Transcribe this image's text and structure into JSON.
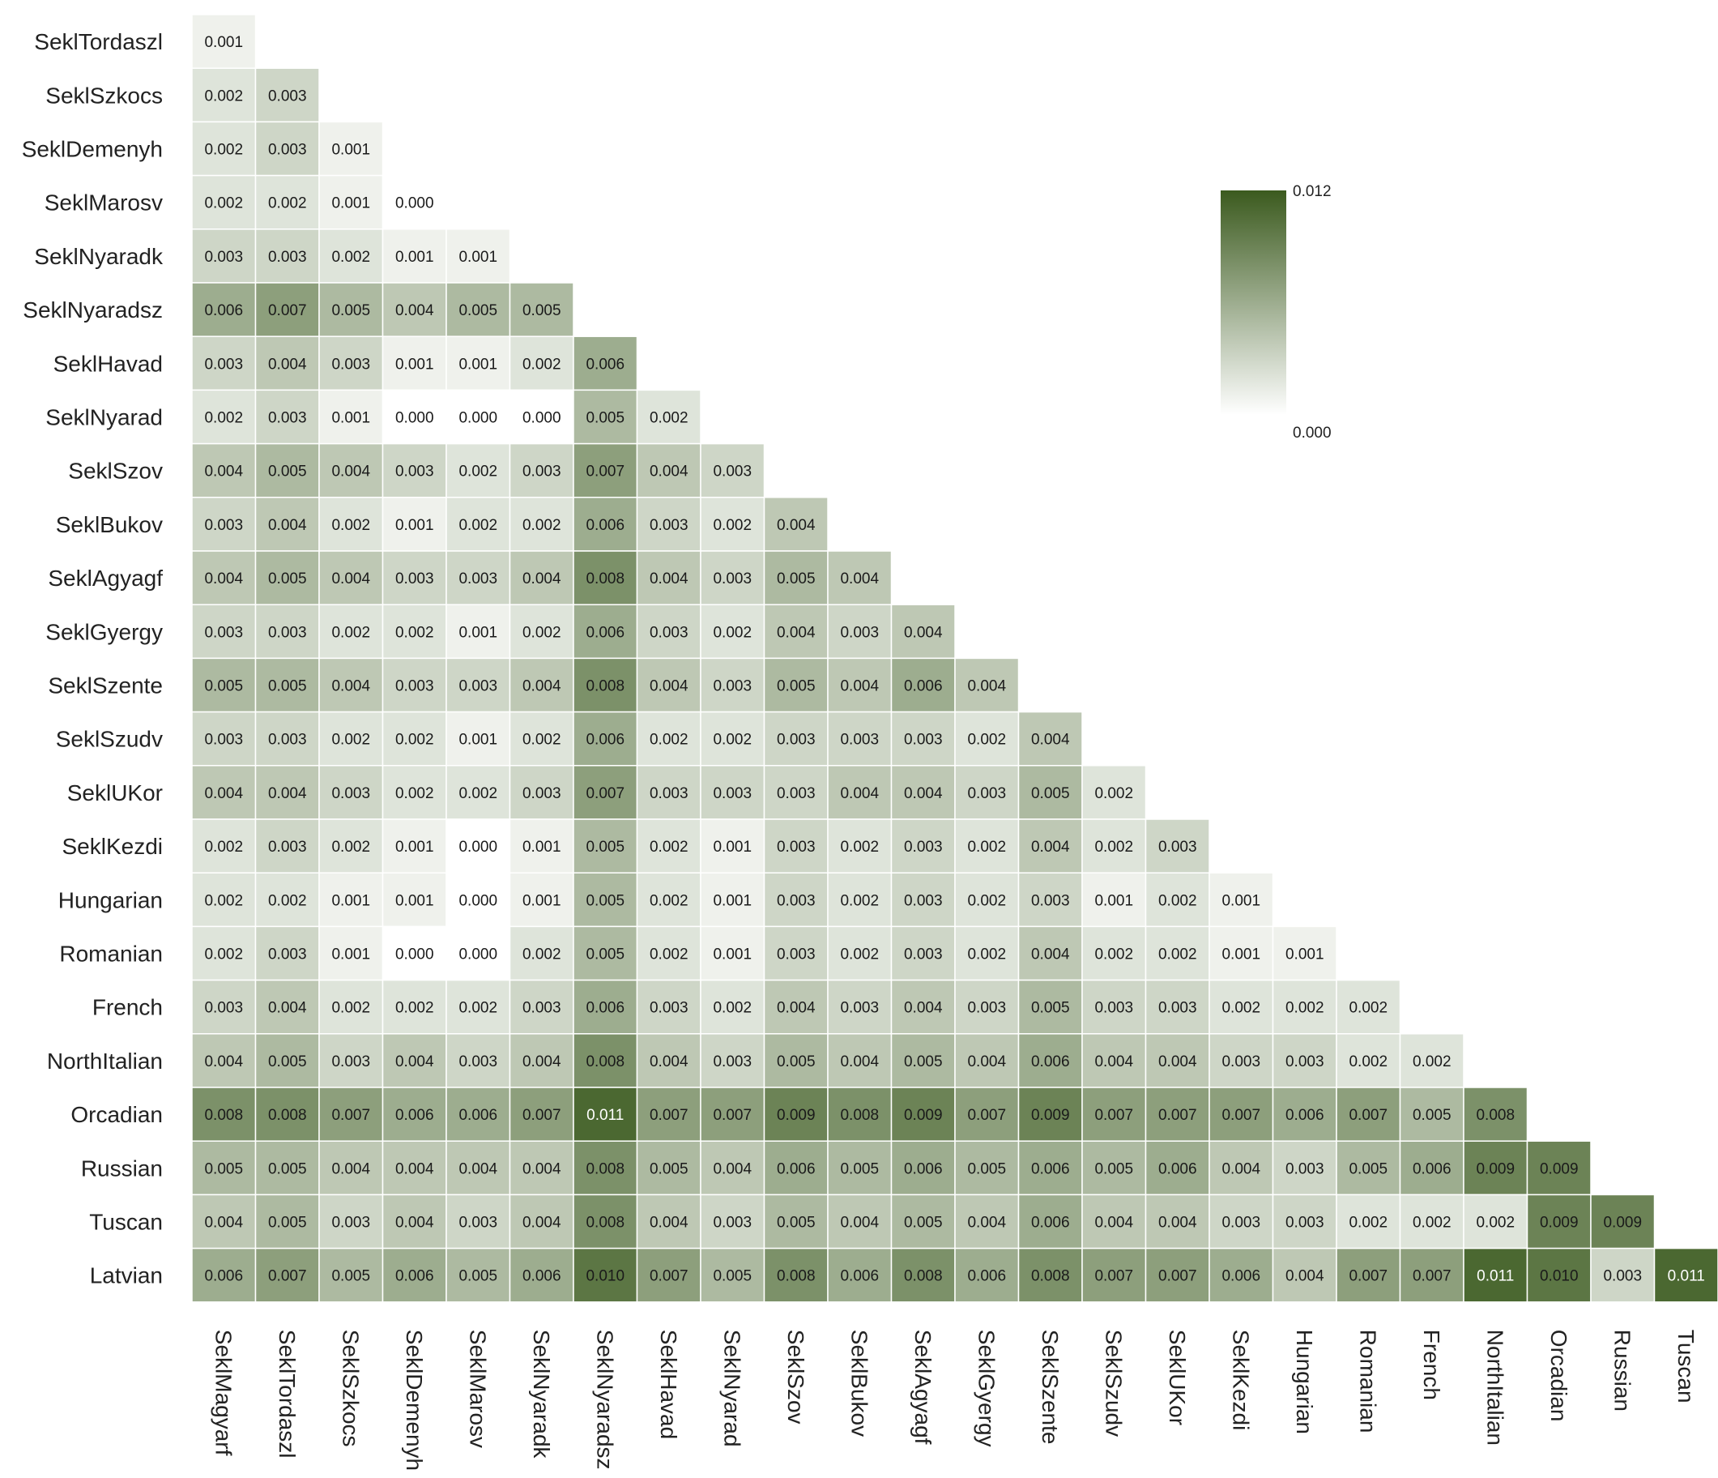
{
  "chart_data": {
    "type": "heatmap",
    "title": "",
    "xlabel": "",
    "ylabel": "",
    "rows": [
      "SeklTordaszl",
      "SeklSzkocs",
      "SeklDemenyh",
      "SeklMarosv",
      "SeklNyaradk",
      "SeklNyaradsz",
      "SeklHavad",
      "SeklNyarad",
      "SeklSzov",
      "SeklBukov",
      "SeklAgyagf",
      "SeklGyergy",
      "SeklSzente",
      "SeklSzudv",
      "SeklUKor",
      "SeklKezdi",
      "Hungarian",
      "Romanian",
      "French",
      "NorthItalian",
      "Orcadian",
      "Russian",
      "Tuscan",
      "Latvian"
    ],
    "columns": [
      "SeklMagyarf",
      "SeklTordaszl",
      "SeklSzkocs",
      "SeklDemenyh",
      "SeklMarosv",
      "SeklNyaradk",
      "SeklNyaradsz",
      "SeklHavad",
      "SeklNyarad",
      "SeklSzov",
      "SeklBukov",
      "SeklAgyagf",
      "SeklGyergy",
      "SeklSzente",
      "SeklSzudv",
      "SeklUKor",
      "SeklKezdi",
      "Hungarian",
      "Romanian",
      "French",
      "NorthItalian",
      "Orcadian",
      "Russian",
      "Tuscan"
    ],
    "values": [
      [
        0.001
      ],
      [
        0.002,
        0.003
      ],
      [
        0.002,
        0.003,
        0.001
      ],
      [
        0.002,
        0.002,
        0.001,
        0.0
      ],
      [
        0.003,
        0.003,
        0.002,
        0.001,
        0.001
      ],
      [
        0.006,
        0.007,
        0.005,
        0.004,
        0.005,
        0.005
      ],
      [
        0.003,
        0.004,
        0.003,
        0.001,
        0.001,
        0.002,
        0.006
      ],
      [
        0.002,
        0.003,
        0.001,
        0.0,
        0.0,
        0.0,
        0.005,
        0.002
      ],
      [
        0.004,
        0.005,
        0.004,
        0.003,
        0.002,
        0.003,
        0.007,
        0.004,
        0.003
      ],
      [
        0.003,
        0.004,
        0.002,
        0.001,
        0.002,
        0.002,
        0.006,
        0.003,
        0.002,
        0.004
      ],
      [
        0.004,
        0.005,
        0.004,
        0.003,
        0.003,
        0.004,
        0.008,
        0.004,
        0.003,
        0.005,
        0.004
      ],
      [
        0.003,
        0.003,
        0.002,
        0.002,
        0.001,
        0.002,
        0.006,
        0.003,
        0.002,
        0.004,
        0.003,
        0.004
      ],
      [
        0.005,
        0.005,
        0.004,
        0.003,
        0.003,
        0.004,
        0.008,
        0.004,
        0.003,
        0.005,
        0.004,
        0.006,
        0.004
      ],
      [
        0.003,
        0.003,
        0.002,
        0.002,
        0.001,
        0.002,
        0.006,
        0.002,
        0.002,
        0.003,
        0.003,
        0.003,
        0.002,
        0.004
      ],
      [
        0.004,
        0.004,
        0.003,
        0.002,
        0.002,
        0.003,
        0.007,
        0.003,
        0.003,
        0.003,
        0.004,
        0.004,
        0.003,
        0.005,
        0.002
      ],
      [
        0.002,
        0.003,
        0.002,
        0.001,
        0.0,
        0.001,
        0.005,
        0.002,
        0.001,
        0.003,
        0.002,
        0.003,
        0.002,
        0.004,
        0.002,
        0.003
      ],
      [
        0.002,
        0.002,
        0.001,
        0.001,
        0.0,
        0.001,
        0.005,
        0.002,
        0.001,
        0.003,
        0.002,
        0.003,
        0.002,
        0.003,
        0.001,
        0.002,
        0.001
      ],
      [
        0.002,
        0.003,
        0.001,
        0.0,
        0.0,
        0.002,
        0.005,
        0.002,
        0.001,
        0.003,
        0.002,
        0.003,
        0.002,
        0.004,
        0.002,
        0.002,
        0.001,
        0.001
      ],
      [
        0.003,
        0.004,
        0.002,
        0.002,
        0.002,
        0.003,
        0.006,
        0.003,
        0.002,
        0.004,
        0.003,
        0.004,
        0.003,
        0.005,
        0.003,
        0.003,
        0.002,
        0.002,
        0.002
      ],
      [
        0.004,
        0.005,
        0.003,
        0.004,
        0.003,
        0.004,
        0.008,
        0.004,
        0.003,
        0.005,
        0.004,
        0.005,
        0.004,
        0.006,
        0.004,
        0.004,
        0.003,
        0.003,
        0.002,
        0.002
      ],
      [
        0.008,
        0.008,
        0.007,
        0.006,
        0.006,
        0.007,
        0.011,
        0.007,
        0.007,
        0.009,
        0.008,
        0.009,
        0.007,
        0.009,
        0.007,
        0.007,
        0.007,
        0.006,
        0.007,
        0.005,
        0.008
      ],
      [
        0.005,
        0.005,
        0.004,
        0.004,
        0.004,
        0.004,
        0.008,
        0.005,
        0.004,
        0.006,
        0.005,
        0.006,
        0.005,
        0.006,
        0.005,
        0.006,
        0.004,
        0.003,
        0.005,
        0.006,
        0.009,
        0.009
      ],
      [
        0.004,
        0.005,
        0.003,
        0.004,
        0.003,
        0.004,
        0.008,
        0.004,
        0.003,
        0.005,
        0.004,
        0.005,
        0.004,
        0.006,
        0.004,
        0.004,
        0.003,
        0.003,
        0.002,
        0.002,
        0.002,
        0.009,
        0.009
      ],
      [
        0.006,
        0.007,
        0.005,
        0.006,
        0.005,
        0.006,
        0.01,
        0.007,
        0.005,
        0.008,
        0.006,
        0.008,
        0.006,
        0.008,
        0.007,
        0.007,
        0.006,
        0.004,
        0.007,
        0.007,
        0.011,
        0.01,
        0.003,
        0.011
      ]
    ],
    "colorbar": {
      "min": 0.0,
      "max": 0.012,
      "min_label": "0.000",
      "max_label": "0.012",
      "color_low": "#ffffff",
      "color_high": "#3b5a1e"
    },
    "grid": true,
    "legend_position": "top-right"
  }
}
